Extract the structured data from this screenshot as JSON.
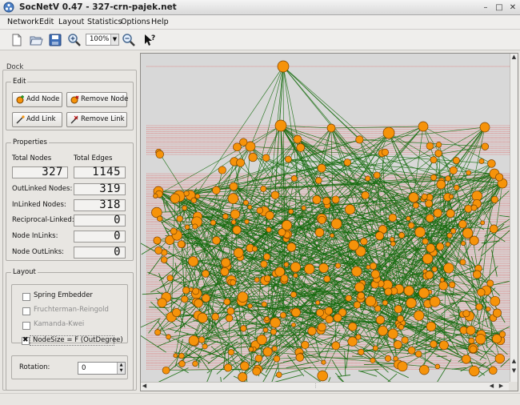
{
  "window": {
    "title": "SocNetV 0.47 - 327-crn-pajek.net",
    "controls": {
      "minimize": "–",
      "maximize": "□",
      "close": "✕"
    }
  },
  "menu": [
    "Network",
    "Edit",
    "Layout",
    "Statistics",
    "Options",
    "Help"
  ],
  "toolbar": {
    "zoom_value": "100%",
    "icons": [
      "new-file-icon",
      "open-file-icon",
      "save-icon",
      "zoom-in-icon",
      "zoom-out-icon",
      "whats-this-icon"
    ]
  },
  "dock": {
    "title": "Dock",
    "edit": {
      "title": "Edit",
      "add_node": "Add Node",
      "remove_node": "Remove Node",
      "add_link": "Add Link",
      "remove_link": "Remove Link"
    },
    "properties": {
      "title": "Properties",
      "total_nodes_label": "Total Nodes",
      "total_edges_label": "Total Edges",
      "total_nodes": "327",
      "total_edges": "1145",
      "outlinked_label": "OutLinked Nodes:",
      "outlinked": "319",
      "inlinked_label": "InLinked Nodes:",
      "inlinked": "318",
      "reciprocal_label": "Reciprocal-Linked:",
      "reciprocal": "0",
      "node_inlinks_label": "Node InLinks:",
      "node_inlinks": "0",
      "node_outlinks_label": "Node OutLinks:",
      "node_outlinks": "0"
    },
    "layout": {
      "title": "Layout",
      "spring": {
        "label": "Spring Embedder",
        "checked": false
      },
      "fruchterman": {
        "label": "Fruchterman-Reingold",
        "checked": false
      },
      "kamanda": {
        "label": "Kamanda-Kwei",
        "checked": false
      },
      "nodesize": {
        "label": "NodeSize = F (OutDegree)",
        "checked": true
      }
    },
    "rotation": {
      "label": "Rotation:",
      "value": "0"
    }
  },
  "graph": {
    "node_color": "#f6930a",
    "node_stroke": "#7a4200",
    "edge_color": "#156b0d",
    "guide_color": "#e63030",
    "background": "#d8d8d8"
  }
}
